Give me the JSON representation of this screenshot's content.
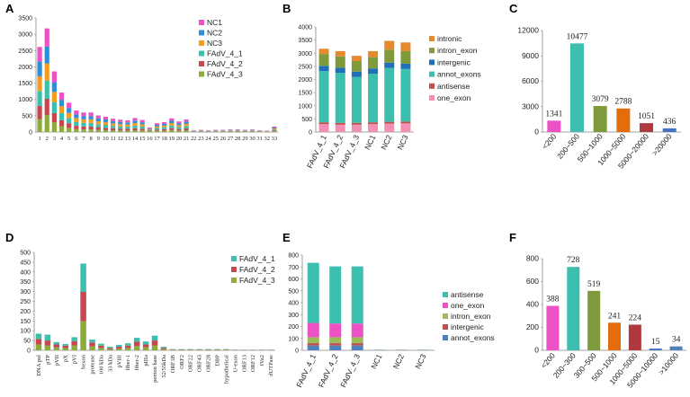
{
  "panels": [
    "A",
    "B",
    "C",
    "D",
    "E",
    "F"
  ],
  "colors": {
    "NC1": "#ec52c3",
    "NC2": "#2e8fd6",
    "NC3": "#f39c1f",
    "FAdV_4_1": "#3cbfae",
    "FAdV_4_2": "#c8464f",
    "FAdV_4_3": "#8bab3a",
    "intronic": "#e68a2e",
    "intron_exon": "#7f9a3a",
    "intergenic": "#1f6fba",
    "annot_exons": "#3cbfae",
    "antisense": "#c0504d",
    "one_exon": "#f28fb3",
    "E_antisense": "#3cbfae",
    "E_one_exon": "#ec52c3",
    "E_intron_exon": "#9bbb59",
    "E_intergenic": "#c0504d",
    "E_annot_exons": "#4f81bd",
    "F_bars": [
      "#ec52c3",
      "#3cbfae",
      "#7f9a3a",
      "#e46c0a",
      "#b0383f",
      "#4472c4",
      "#4f81bd"
    ],
    "C_bars": [
      "#ec52c3",
      "#3cbfae",
      "#7f9a3a",
      "#e46c0a",
      "#b0383f",
      "#4472c4"
    ]
  },
  "chart_data": [
    {
      "panel": "A",
      "type": "bar",
      "stacked": true,
      "categories": [
        "1",
        "2",
        "3",
        "4",
        "5",
        "6",
        "7",
        "8",
        "9",
        "10",
        "11",
        "12",
        "13",
        "14",
        "15",
        "16",
        "17",
        "18",
        "19",
        "20",
        "21",
        "22",
        "23",
        "24",
        "25",
        "26",
        "27",
        "28",
        "29",
        "30",
        "31",
        "32",
        "33"
      ],
      "series": [
        {
          "name": "FAdV_4_3",
          "values": [
            400,
            520,
            300,
            180,
            130,
            90,
            80,
            80,
            70,
            60,
            55,
            50,
            45,
            55,
            45,
            25,
            40,
            45,
            60,
            45,
            55,
            10,
            10,
            10,
            10,
            10,
            12,
            12,
            10,
            12,
            8,
            6,
            25
          ]
        },
        {
          "name": "FAdV_4_2",
          "values": [
            400,
            500,
            280,
            180,
            140,
            100,
            90,
            90,
            80,
            70,
            60,
            55,
            55,
            60,
            50,
            20,
            35,
            45,
            60,
            45,
            55,
            8,
            10,
            8,
            10,
            10,
            12,
            12,
            10,
            12,
            8,
            6,
            25
          ]
        },
        {
          "name": "FAdV_4_1",
          "values": [
            460,
            560,
            330,
            220,
            160,
            120,
            110,
            110,
            90,
            90,
            75,
            70,
            65,
            80,
            70,
            25,
            50,
            55,
            80,
            60,
            70,
            10,
            12,
            10,
            12,
            12,
            14,
            14,
            12,
            14,
            10,
            8,
            30
          ]
        },
        {
          "name": "NC3",
          "values": [
            450,
            520,
            320,
            210,
            160,
            120,
            110,
            110,
            90,
            85,
            75,
            70,
            65,
            80,
            70,
            25,
            50,
            55,
            75,
            60,
            70,
            10,
            12,
            10,
            12,
            12,
            14,
            14,
            12,
            14,
            10,
            8,
            30
          ]
        },
        {
          "name": "NC2",
          "values": [
            450,
            520,
            300,
            200,
            150,
            110,
            100,
            100,
            90,
            80,
            70,
            65,
            65,
            75,
            65,
            20,
            45,
            50,
            70,
            55,
            65,
            10,
            12,
            10,
            12,
            12,
            14,
            14,
            12,
            14,
            10,
            8,
            30
          ]
        },
        {
          "name": "NC1",
          "values": [
            450,
            560,
            330,
            220,
            160,
            120,
            110,
            110,
            90,
            85,
            75,
            70,
            65,
            80,
            70,
            25,
            50,
            55,
            75,
            60,
            70,
            10,
            12,
            10,
            12,
            12,
            14,
            14,
            12,
            14,
            10,
            8,
            30
          ]
        }
      ],
      "ylim": [
        0,
        3500
      ],
      "yticks": [
        0,
        500,
        1000,
        1500,
        2000,
        2500,
        3000,
        3500
      ],
      "legend": [
        "NC1",
        "NC2",
        "NC3",
        "FAdV_4_1",
        "FAdV_4_2",
        "FAdV_4_3"
      ]
    },
    {
      "panel": "B",
      "type": "bar",
      "stacked": true,
      "categories": [
        "FAdV_4_1",
        "FAdV_4_2",
        "FAdV_4_3",
        "NC1",
        "NC2",
        "NC3"
      ],
      "series": [
        {
          "name": "one_exon",
          "values": [
            300,
            280,
            280,
            300,
            320,
            330
          ]
        },
        {
          "name": "antisense",
          "values": [
            70,
            70,
            70,
            70,
            70,
            70
          ]
        },
        {
          "name": "annot_exons",
          "values": [
            1950,
            1900,
            1750,
            1850,
            2050,
            2000
          ]
        },
        {
          "name": "intergenic",
          "values": [
            200,
            200,
            200,
            200,
            200,
            200
          ]
        },
        {
          "name": "intron_exon",
          "values": [
            450,
            430,
            400,
            430,
            500,
            480
          ]
        },
        {
          "name": "intronic",
          "values": [
            200,
            200,
            200,
            230,
            330,
            330
          ]
        }
      ],
      "ylim": [
        0,
        4000
      ],
      "yticks": [
        0,
        500,
        1000,
        1500,
        2000,
        2500,
        3000,
        3500,
        4000
      ],
      "legend": [
        "intronic",
        "intron_exon",
        "intergenic",
        "annot_exons",
        "antisense",
        "one_exon"
      ]
    },
    {
      "panel": "C",
      "type": "bar",
      "categories": [
        "<200",
        "200~500",
        "500~1000",
        "1000~5000",
        "5000~20000",
        ">20000"
      ],
      "values": [
        1341,
        10477,
        3079,
        2788,
        1051,
        436
      ],
      "data_labels": [
        "1341",
        "10477",
        "3079",
        "2788",
        "1051",
        "436"
      ],
      "ylim": [
        0,
        12000
      ],
      "yticks": [
        0,
        3000,
        6000,
        9000,
        12000
      ]
    },
    {
      "panel": "D",
      "type": "bar",
      "stacked": true,
      "categories": [
        "DNA pol",
        "pTP",
        "pVII",
        "pX",
        "pVI",
        "hexon",
        "protease",
        "100 kDa",
        "33 kDa",
        "pVIII",
        "fiber-1",
        "fiber-2",
        "pIIIa",
        "penton base",
        "52/55kDa",
        "ORF1B",
        "ORF2",
        "ORF22",
        "ORF43",
        "ORF28",
        "DBP",
        "hypothetical",
        "U-exon",
        "ORF13",
        "ORF12",
        "IVa2",
        "dUTPase"
      ],
      "series": [
        {
          "name": "FAdV_4_3",
          "values": [
            30,
            25,
            15,
            12,
            25,
            148,
            20,
            12,
            6,
            8,
            12,
            22,
            15,
            25,
            6,
            2,
            2,
            2,
            2,
            2,
            2,
            2,
            1,
            1,
            1,
            1,
            1
          ]
        },
        {
          "name": "FAdV_4_2",
          "values": [
            28,
            25,
            15,
            12,
            22,
            150,
            20,
            12,
            6,
            10,
            12,
            22,
            15,
            25,
            6,
            2,
            2,
            2,
            2,
            2,
            2,
            2,
            1,
            1,
            1,
            1,
            1
          ]
        },
        {
          "name": "FAdV_4_1",
          "values": [
            27,
            30,
            12,
            8,
            20,
            145,
            15,
            10,
            6,
            10,
            12,
            20,
            15,
            25,
            6,
            2,
            2,
            2,
            2,
            2,
            2,
            2,
            1,
            1,
            1,
            1,
            1
          ]
        }
      ],
      "ylim": [
        0,
        500
      ],
      "yticks": [
        0,
        50,
        100,
        150,
        200,
        250,
        300,
        350,
        400,
        450,
        500
      ],
      "legend": [
        "FAdV_4_1",
        "FAdV_4_2",
        "FAdV_4_3"
      ]
    },
    {
      "panel": "E",
      "type": "bar",
      "stacked": true,
      "categories": [
        "FAdV_4_1",
        "FAdV_4_2",
        "FAdV_4_3",
        "NC1",
        "NC2",
        "NC3"
      ],
      "series": [
        {
          "name": "annot_exons",
          "values": [
            40,
            40,
            40,
            1,
            1,
            1
          ]
        },
        {
          "name": "intergenic",
          "values": [
            20,
            20,
            20,
            0,
            0,
            0
          ]
        },
        {
          "name": "intron_exon",
          "values": [
            50,
            50,
            50,
            1,
            1,
            1
          ]
        },
        {
          "name": "one_exon",
          "values": [
            120,
            115,
            115,
            1,
            1,
            1
          ]
        },
        {
          "name": "antisense",
          "values": [
            505,
            480,
            480,
            2,
            2,
            2
          ]
        }
      ],
      "ylim": [
        0,
        800
      ],
      "yticks": [
        0,
        100,
        200,
        300,
        400,
        500,
        600,
        700,
        800
      ],
      "legend": [
        "antisense",
        "one_exon",
        "intron_exon",
        "intergenic",
        "annot_exons"
      ]
    },
    {
      "panel": "F",
      "type": "bar",
      "categories": [
        "<200",
        "200~300",
        "300~500",
        "500~1000",
        "1000~5000",
        "5000~10000",
        ">10000"
      ],
      "values": [
        388,
        728,
        519,
        241,
        224,
        15,
        34
      ],
      "data_labels": [
        "388",
        "728",
        "519",
        "241",
        "224",
        "15",
        "34"
      ],
      "ylim": [
        0,
        800
      ],
      "yticks": [
        0,
        200,
        400,
        600,
        800
      ]
    }
  ]
}
